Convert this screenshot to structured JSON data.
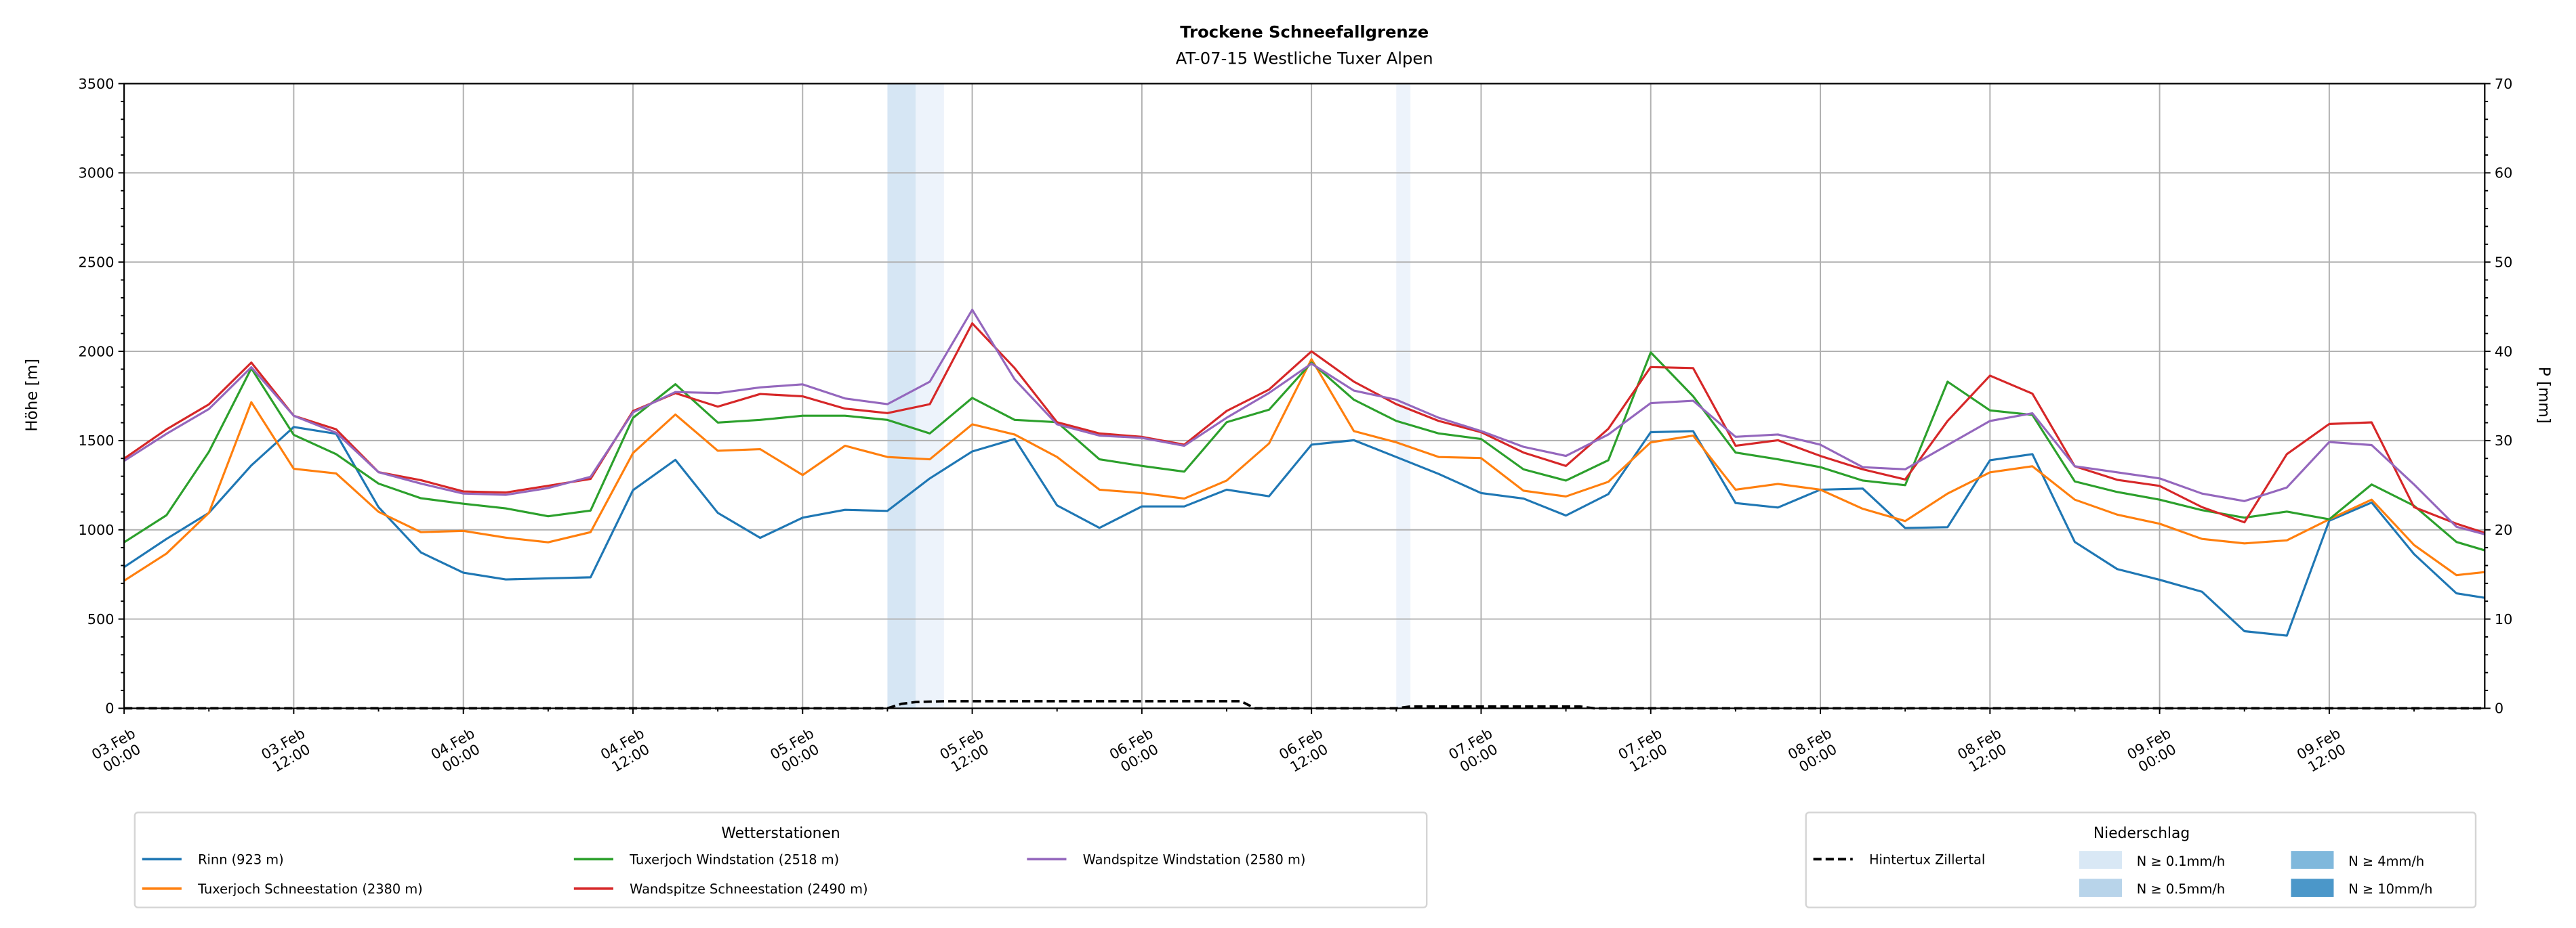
{
  "chart_data": {
    "type": "line",
    "title": "Trockene Schneefallgrenze",
    "subtitle": "AT-07-15 Westliche Tuxer Alpen",
    "ylabel": "Höhe [m]",
    "ylabel_right": "P [mm]",
    "ylim": [
      0,
      3500
    ],
    "ylim_right": [
      0,
      70
    ],
    "yticks": [
      0,
      500,
      1000,
      1500,
      2000,
      2500,
      3000,
      3500
    ],
    "yticks_right": [
      0,
      10,
      20,
      30,
      40,
      50,
      60,
      70
    ],
    "grid": true,
    "x_unit": "hours since 03.Feb 00:00",
    "x_range_hours": [
      0,
      167
    ],
    "x_hours": [
      0,
      3,
      6,
      9,
      12,
      15,
      18,
      21,
      24,
      27,
      30,
      33,
      36,
      39,
      42,
      45,
      48,
      51,
      54,
      57,
      60,
      63,
      66,
      69,
      72,
      75,
      78,
      81,
      84,
      87,
      90,
      93,
      96,
      99,
      102,
      105,
      108,
      111,
      114,
      117,
      120,
      123,
      126,
      129,
      132,
      135,
      138,
      141,
      144,
      147,
      150,
      153,
      156,
      159,
      162,
      165,
      167
    ],
    "xticks": [
      {
        "hour": 0,
        "date": "03.Feb",
        "time": "00:00"
      },
      {
        "hour": 12,
        "date": "03.Feb",
        "time": "12:00"
      },
      {
        "hour": 24,
        "date": "04.Feb",
        "time": "00:00"
      },
      {
        "hour": 36,
        "date": "04.Feb",
        "time": "12:00"
      },
      {
        "hour": 48,
        "date": "05.Feb",
        "time": "00:00"
      },
      {
        "hour": 60,
        "date": "05.Feb",
        "time": "12:00"
      },
      {
        "hour": 72,
        "date": "06.Feb",
        "time": "00:00"
      },
      {
        "hour": 84,
        "date": "06.Feb",
        "time": "12:00"
      },
      {
        "hour": 96,
        "date": "07.Feb",
        "time": "00:00"
      },
      {
        "hour": 108,
        "date": "07.Feb",
        "time": "12:00"
      },
      {
        "hour": 120,
        "date": "08.Feb",
        "time": "00:00"
      },
      {
        "hour": 132,
        "date": "08.Feb",
        "time": "12:00"
      },
      {
        "hour": 144,
        "date": "09.Feb",
        "time": "00:00"
      },
      {
        "hour": 156,
        "date": "09.Feb",
        "time": "12:00"
      }
    ],
    "series": [
      {
        "name": "Rinn (923 m)",
        "color": "#1f77b4",
        "values": [
          791,
          949,
          1095,
          1361,
          1576,
          1538,
          1127,
          873,
          760,
          722,
          728,
          734,
          1222,
          1392,
          1095,
          955,
          1068,
          1112,
          1106,
          1288,
          1439,
          1509,
          1137,
          1011,
          1131,
          1131,
          1225,
          1188,
          1477,
          1502,
          1408,
          1313,
          1206,
          1175,
          1080,
          1200,
          1547,
          1553,
          1150,
          1125,
          1225,
          1231,
          1010,
          1015,
          1390,
          1424,
          932,
          780,
          720,
          653,
          432,
          407,
          1051,
          1153,
          864,
          644,
          619
        ]
      },
      {
        "name": "Tuxerjoch Schneestation (2380 m)",
        "color": "#ff7f0e",
        "values": [
          715,
          867,
          1095,
          1715,
          1342,
          1316,
          1101,
          987,
          994,
          956,
          930,
          987,
          1430,
          1646,
          1443,
          1452,
          1307,
          1471,
          1408,
          1395,
          1591,
          1534,
          1408,
          1225,
          1206,
          1175,
          1276,
          1484,
          1956,
          1553,
          1490,
          1408,
          1402,
          1219,
          1187,
          1269,
          1490,
          1528,
          1225,
          1257,
          1225,
          1118,
          1049,
          1203,
          1322,
          1356,
          1169,
          1085,
          1034,
          949,
          924,
          941,
          1059,
          1169,
          915,
          746,
          763
        ]
      },
      {
        "name": "Tuxerjoch Windstation (2518 m)",
        "color": "#2ca02c",
        "values": [
          930,
          1082,
          1437,
          1905,
          1532,
          1424,
          1259,
          1177,
          1146,
          1120,
          1076,
          1108,
          1627,
          1816,
          1601,
          1616,
          1639,
          1639,
          1616,
          1540,
          1739,
          1616,
          1603,
          1395,
          1358,
          1326,
          1603,
          1673,
          1937,
          1729,
          1610,
          1540,
          1509,
          1339,
          1276,
          1390,
          1994,
          1748,
          1433,
          1395,
          1351,
          1276,
          1250,
          1830,
          1669,
          1644,
          1271,
          1212,
          1169,
          1110,
          1068,
          1102,
          1059,
          1254,
          1135,
          932,
          885
        ]
      },
      {
        "name": "Wandspitze Schneestation (2490 m)",
        "color": "#d62728",
        "values": [
          1399,
          1563,
          1703,
          1937,
          1639,
          1563,
          1323,
          1278,
          1215,
          1209,
          1247,
          1285,
          1665,
          1766,
          1690,
          1761,
          1748,
          1679,
          1654,
          1704,
          2157,
          1906,
          1603,
          1540,
          1521,
          1477,
          1666,
          1786,
          2000,
          1830,
          1704,
          1610,
          1547,
          1433,
          1358,
          1566,
          1912,
          1906,
          1471,
          1502,
          1414,
          1339,
          1282,
          1610,
          1864,
          1763,
          1356,
          1280,
          1246,
          1127,
          1042,
          1424,
          1593,
          1602,
          1127,
          1034,
          983
        ]
      },
      {
        "name": "Wandspitze Windstation (2580 m)",
        "color": "#9467bd",
        "values": [
          1386,
          1538,
          1677,
          1911,
          1639,
          1544,
          1323,
          1259,
          1203,
          1196,
          1234,
          1297,
          1658,
          1772,
          1766,
          1798,
          1815,
          1736,
          1704,
          1830,
          2233,
          1843,
          1591,
          1528,
          1515,
          1471,
          1628,
          1767,
          1931,
          1780,
          1729,
          1628,
          1553,
          1465,
          1414,
          1534,
          1710,
          1723,
          1521,
          1534,
          1477,
          1351,
          1339,
          1475,
          1610,
          1653,
          1356,
          1322,
          1288,
          1203,
          1161,
          1237,
          1492,
          1475,
          1254,
          1017,
          975
        ]
      }
    ],
    "precipitation": {
      "name": "Hintertux Zillertal",
      "color": "#000000",
      "points": [
        [
          0,
          0
        ],
        [
          54,
          0
        ],
        [
          55,
          0.5
        ],
        [
          56,
          0.7
        ],
        [
          58,
          0.8
        ],
        [
          79,
          0.8
        ],
        [
          80,
          0
        ],
        [
          90,
          0
        ],
        [
          91,
          0.2
        ],
        [
          103,
          0.2
        ],
        [
          104,
          0
        ],
        [
          167,
          0
        ]
      ]
    },
    "precip_bands": [
      {
        "start_hour": 54,
        "end_hour": 56,
        "color": "#d6e6f4"
      },
      {
        "start_hour": 56,
        "end_hour": 58,
        "color": "#edf3fb"
      },
      {
        "start_hour": 90,
        "end_hour": 91,
        "color": "#edf3fb"
      }
    ],
    "legend_stations": {
      "title": "Wetterstationen",
      "placement": "bottom-left"
    },
    "legend_precip": {
      "title": "Niederschlag",
      "placement": "bottom-right",
      "line_label": "Hintertux Zillertal",
      "levels": [
        {
          "label": "N ≥ 0.1mm/h",
          "color": "#d9e8f5"
        },
        {
          "label": "N ≥ 0.5mm/h",
          "color": "#b8d4ea"
        },
        {
          "label": "N ≥ 4mm/h",
          "color": "#7fb8dc"
        },
        {
          "label": "N ≥ 10mm/h",
          "color": "#4b97c9"
        }
      ]
    }
  }
}
